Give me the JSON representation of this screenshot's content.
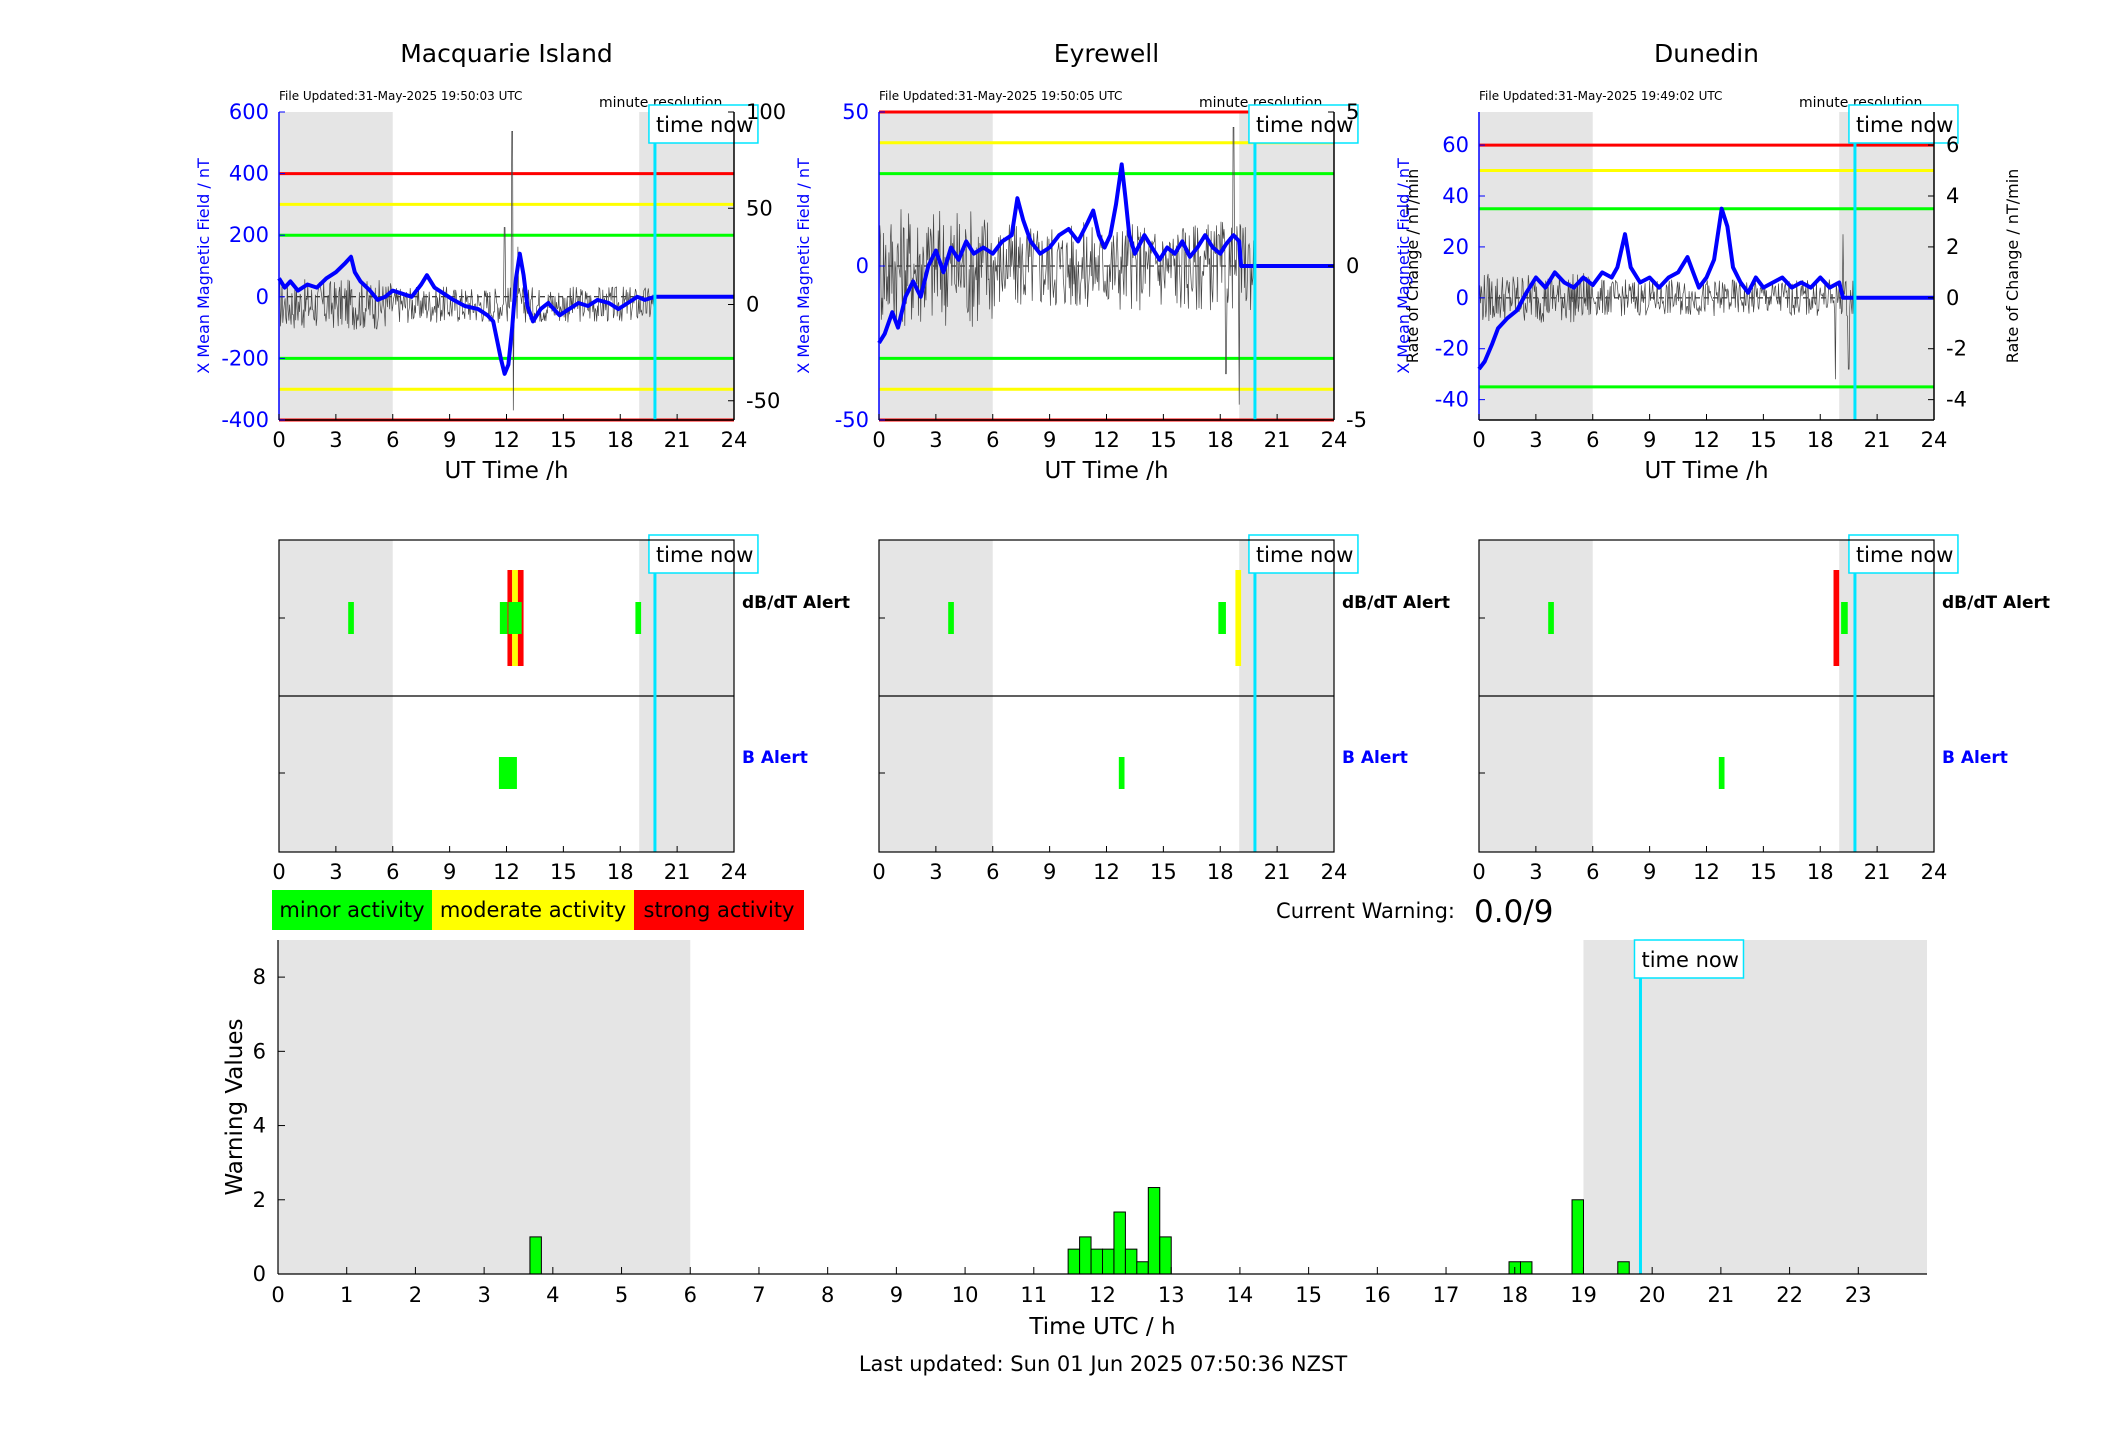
{
  "colors": {
    "x_field": "#0000ff",
    "rate": "#444444",
    "red": "#ff0000",
    "yellow": "#ffff00",
    "green": "#00ff00",
    "time_now": "#00e5ff",
    "shade": "#e5e5e5"
  },
  "time_now_label": "time now",
  "minute_resolution_label": "minute resolution",
  "time_now_hour": 19.83,
  "chart_data": [
    {
      "type": "line",
      "station": "Macquarie Island",
      "title": "Macquarie Island",
      "file_updated": "File Updated:31-May-2025 19:50:03 UTC",
      "xlabel": "UT Time /h",
      "ylabel_left": "X Mean Magnetic Field / nT",
      "ylabel_right": "",
      "xlim": [
        0,
        24
      ],
      "x_ticks": [
        0,
        3,
        6,
        9,
        12,
        15,
        18,
        21,
        24
      ],
      "ylim_left": [
        -400,
        600
      ],
      "yticks_left": [
        -400,
        -200,
        0,
        200,
        400,
        600
      ],
      "ylim_right": [
        -60,
        100
      ],
      "yticks_right": [
        -50,
        0,
        50,
        100
      ],
      "thresholds": {
        "red": 400,
        "yellow": 300,
        "green": 200
      },
      "grey_bands": [
        [
          0,
          6
        ],
        [
          19,
          24
        ]
      ],
      "rate_noise_amplitude": 12,
      "rate_spikes": [
        [
          12.3,
          90
        ],
        [
          12.35,
          -55
        ],
        [
          11.9,
          40
        ],
        [
          12.6,
          30
        ]
      ],
      "series_x_field": [
        [
          0,
          60
        ],
        [
          0.3,
          30
        ],
        [
          0.6,
          50
        ],
        [
          1,
          20
        ],
        [
          1.5,
          40
        ],
        [
          2,
          30
        ],
        [
          2.5,
          60
        ],
        [
          3,
          80
        ],
        [
          3.5,
          110
        ],
        [
          3.8,
          130
        ],
        [
          4,
          80
        ],
        [
          4.3,
          50
        ],
        [
          4.8,
          20
        ],
        [
          5.2,
          -10
        ],
        [
          5.6,
          0
        ],
        [
          6,
          20
        ],
        [
          6.5,
          10
        ],
        [
          7,
          0
        ],
        [
          7.5,
          40
        ],
        [
          7.8,
          70
        ],
        [
          8.2,
          30
        ],
        [
          8.7,
          10
        ],
        [
          9.2,
          -10
        ],
        [
          9.8,
          -30
        ],
        [
          10.5,
          -40
        ],
        [
          11,
          -60
        ],
        [
          11.3,
          -80
        ],
        [
          11.5,
          -140
        ],
        [
          11.7,
          -200
        ],
        [
          11.9,
          -250
        ],
        [
          12.1,
          -220
        ],
        [
          12.3,
          -100
        ],
        [
          12.5,
          60
        ],
        [
          12.7,
          140
        ],
        [
          12.9,
          70
        ],
        [
          13.1,
          -30
        ],
        [
          13.4,
          -80
        ],
        [
          13.8,
          -40
        ],
        [
          14.2,
          -20
        ],
        [
          14.8,
          -60
        ],
        [
          15.3,
          -40
        ],
        [
          15.8,
          -20
        ],
        [
          16.3,
          -30
        ],
        [
          16.8,
          -10
        ],
        [
          17.4,
          -20
        ],
        [
          17.9,
          -40
        ],
        [
          18.4,
          -20
        ],
        [
          18.9,
          0
        ],
        [
          19.3,
          -10
        ],
        [
          19.83,
          0
        ],
        [
          24,
          0
        ]
      ]
    },
    {
      "type": "line",
      "station": "Eyrewell",
      "title": "Eyrewell",
      "file_updated": "File Updated:31-May-2025 19:50:05 UTC",
      "xlabel": "UT Time /h",
      "ylabel_left": "X Mean Magnetic Field / nT",
      "ylabel_right": "Rate of Change / nT/min",
      "xlim": [
        0,
        24
      ],
      "x_ticks": [
        0,
        3,
        6,
        9,
        12,
        15,
        18,
        21,
        24
      ],
      "ylim_left": [
        -50,
        50
      ],
      "yticks_left": [
        -50,
        0,
        50
      ],
      "ylim_right": [
        -5,
        5
      ],
      "yticks_right": [
        -5,
        0,
        5
      ],
      "thresholds": {
        "red": 50,
        "yellow": 40,
        "green": 30
      },
      "grey_bands": [
        [
          0,
          6
        ],
        [
          19,
          24
        ]
      ],
      "rate_noise_amplitude": 1.8,
      "rate_spikes": [
        [
          18.3,
          -3.5
        ],
        [
          18.7,
          4.5
        ],
        [
          19.0,
          -4.5
        ]
      ],
      "series_x_field": [
        [
          0,
          -25
        ],
        [
          0.3,
          -22
        ],
        [
          0.7,
          -15
        ],
        [
          1,
          -20
        ],
        [
          1.4,
          -10
        ],
        [
          1.8,
          -5
        ],
        [
          2.2,
          -10
        ],
        [
          2.6,
          0
        ],
        [
          3,
          5
        ],
        [
          3.4,
          -2
        ],
        [
          3.8,
          6
        ],
        [
          4.2,
          2
        ],
        [
          4.6,
          8
        ],
        [
          5,
          4
        ],
        [
          5.5,
          6
        ],
        [
          6,
          4
        ],
        [
          6.5,
          8
        ],
        [
          7,
          10
        ],
        [
          7.3,
          22
        ],
        [
          7.6,
          15
        ],
        [
          8,
          8
        ],
        [
          8.5,
          4
        ],
        [
          9,
          6
        ],
        [
          9.5,
          10
        ],
        [
          10,
          12
        ],
        [
          10.5,
          8
        ],
        [
          11,
          14
        ],
        [
          11.3,
          18
        ],
        [
          11.6,
          10
        ],
        [
          11.9,
          6
        ],
        [
          12.2,
          10
        ],
        [
          12.5,
          20
        ],
        [
          12.8,
          33
        ],
        [
          13,
          22
        ],
        [
          13.2,
          10
        ],
        [
          13.5,
          4
        ],
        [
          14,
          10
        ],
        [
          14.4,
          6
        ],
        [
          14.8,
          2
        ],
        [
          15.2,
          6
        ],
        [
          15.6,
          4
        ],
        [
          16,
          8
        ],
        [
          16.4,
          3
        ],
        [
          16.8,
          6
        ],
        [
          17.2,
          10
        ],
        [
          17.6,
          6
        ],
        [
          18,
          4
        ],
        [
          18.3,
          7
        ],
        [
          18.7,
          10
        ],
        [
          19,
          8
        ],
        [
          19.1,
          0
        ],
        [
          24,
          0
        ]
      ]
    },
    {
      "type": "line",
      "station": "Dunedin",
      "title": "Dunedin",
      "file_updated": "File Updated:31-May-2025 19:49:02 UTC",
      "xlabel": "UT Time /h",
      "ylabel_left": "X Mean Magnetic Field / nT",
      "ylabel_right": "Rate of Change / nT/min",
      "xlim": [
        0,
        24
      ],
      "x_ticks": [
        0,
        3,
        6,
        9,
        12,
        15,
        18,
        21,
        24
      ],
      "ylim_left": [
        -48,
        73
      ],
      "yticks_left": [
        -40,
        -20,
        0,
        20,
        40,
        60
      ],
      "ylim_right": [
        -4.8,
        7.3
      ],
      "yticks_right": [
        -4,
        -2,
        0,
        2,
        4,
        6
      ],
      "thresholds": {
        "red": 60,
        "yellow": 50,
        "green": 35
      },
      "grey_bands": [
        [
          0,
          6
        ],
        [
          19,
          24
        ]
      ],
      "rate_noise_amplitude": 0.9,
      "rate_spikes": [
        [
          18.8,
          -3.2
        ],
        [
          19.2,
          2.5
        ],
        [
          19.5,
          -2.8
        ]
      ],
      "series_x_field": [
        [
          0,
          -28
        ],
        [
          0.3,
          -25
        ],
        [
          0.7,
          -18
        ],
        [
          1,
          -12
        ],
        [
          1.5,
          -8
        ],
        [
          2,
          -5
        ],
        [
          2.5,
          2
        ],
        [
          3,
          8
        ],
        [
          3.5,
          4
        ],
        [
          4,
          10
        ],
        [
          4.5,
          6
        ],
        [
          5,
          4
        ],
        [
          5.5,
          8
        ],
        [
          6,
          5
        ],
        [
          6.5,
          10
        ],
        [
          7,
          8
        ],
        [
          7.3,
          12
        ],
        [
          7.7,
          25
        ],
        [
          8,
          12
        ],
        [
          8.5,
          6
        ],
        [
          9,
          8
        ],
        [
          9.5,
          4
        ],
        [
          10,
          8
        ],
        [
          10.5,
          10
        ],
        [
          11,
          16
        ],
        [
          11.3,
          10
        ],
        [
          11.6,
          4
        ],
        [
          12,
          8
        ],
        [
          12.4,
          15
        ],
        [
          12.8,
          35
        ],
        [
          13.1,
          28
        ],
        [
          13.4,
          12
        ],
        [
          13.8,
          6
        ],
        [
          14.2,
          2
        ],
        [
          14.6,
          8
        ],
        [
          15,
          4
        ],
        [
          15.5,
          6
        ],
        [
          16,
          8
        ],
        [
          16.5,
          4
        ],
        [
          17,
          6
        ],
        [
          17.5,
          4
        ],
        [
          18,
          8
        ],
        [
          18.5,
          4
        ],
        [
          19,
          6
        ],
        [
          19.2,
          0
        ],
        [
          24,
          0
        ]
      ]
    },
    {
      "type": "heatmap",
      "station": "Macquarie Island",
      "rows": [
        "dB/dT Alert",
        "B Alert"
      ],
      "xlim": [
        0,
        24
      ],
      "x_ticks": [
        0,
        3,
        6,
        9,
        12,
        15,
        18,
        21,
        24
      ],
      "grey_bands": [
        [
          0,
          6
        ],
        [
          19,
          24
        ]
      ],
      "dbdt_blocks": [
        {
          "start": 3.65,
          "end": 3.95,
          "level": "green"
        },
        {
          "start": 11.65,
          "end": 12.05,
          "level": "green"
        },
        {
          "start": 12.05,
          "end": 12.3,
          "level": "red"
        },
        {
          "start": 12.3,
          "end": 12.6,
          "level": "yellow"
        },
        {
          "start": 12.6,
          "end": 12.9,
          "level": "red"
        },
        {
          "start": 18.8,
          "end": 19.1,
          "level": "green"
        }
      ],
      "b_blocks": [
        {
          "start": 11.6,
          "end": 12.55,
          "level": "green"
        }
      ]
    },
    {
      "type": "heatmap",
      "station": "Eyrewell",
      "rows": [
        "dB/dT Alert",
        "B Alert"
      ],
      "xlim": [
        0,
        24
      ],
      "x_ticks": [
        0,
        3,
        6,
        9,
        12,
        15,
        18,
        21,
        24
      ],
      "grey_bands": [
        [
          0,
          6
        ],
        [
          19,
          24
        ]
      ],
      "dbdt_blocks": [
        {
          "start": 3.65,
          "end": 3.95,
          "level": "green"
        },
        {
          "start": 17.9,
          "end": 18.3,
          "level": "green"
        },
        {
          "start": 18.8,
          "end": 19.1,
          "level": "yellow"
        }
      ],
      "b_blocks": [
        {
          "start": 12.65,
          "end": 12.95,
          "level": "green"
        }
      ]
    },
    {
      "type": "heatmap",
      "station": "Dunedin",
      "rows": [
        "dB/dT Alert",
        "B Alert"
      ],
      "xlim": [
        0,
        24
      ],
      "x_ticks": [
        0,
        3,
        6,
        9,
        12,
        15,
        18,
        21,
        24
      ],
      "grey_bands": [
        [
          0,
          6
        ],
        [
          19,
          24
        ]
      ],
      "dbdt_blocks": [
        {
          "start": 3.65,
          "end": 3.95,
          "level": "green"
        },
        {
          "start": 18.7,
          "end": 19.0,
          "level": "red"
        },
        {
          "start": 19.1,
          "end": 19.45,
          "level": "green"
        }
      ],
      "b_blocks": [
        {
          "start": 12.65,
          "end": 12.95,
          "level": "green"
        }
      ]
    },
    {
      "type": "bar",
      "title": "",
      "xlabel": "Time UTC / h",
      "ylabel": "Warning Values",
      "xlim": [
        0,
        24
      ],
      "x_ticks": [
        0,
        1,
        2,
        3,
        4,
        5,
        6,
        7,
        8,
        9,
        10,
        11,
        12,
        13,
        14,
        15,
        16,
        17,
        18,
        19,
        20,
        21,
        22,
        23
      ],
      "ylim": [
        0,
        9
      ],
      "y_ticks": [
        0,
        2,
        4,
        6,
        8
      ],
      "grey_bands": [
        [
          0,
          6
        ],
        [
          19,
          24
        ]
      ],
      "bin_width": 0.1667,
      "x": [
        3.75,
        11.583,
        11.75,
        11.917,
        12.083,
        12.25,
        12.417,
        12.583,
        12.75,
        12.917,
        18,
        18.167,
        18.917,
        19.583
      ],
      "values": [
        1,
        0.67,
        1,
        0.67,
        0.67,
        1.67,
        0.67,
        0.33,
        2.33,
        1,
        0.33,
        0.33,
        2,
        0.33
      ]
    }
  ],
  "legend": {
    "minor": "minor activity",
    "moderate": "moderate activity",
    "strong": "strong activity"
  },
  "current_warning": {
    "label": "Current Warning:",
    "value": "0.0/9"
  },
  "footer": "Last updated: Sun 01 Jun 2025 07:50:36 NZST"
}
